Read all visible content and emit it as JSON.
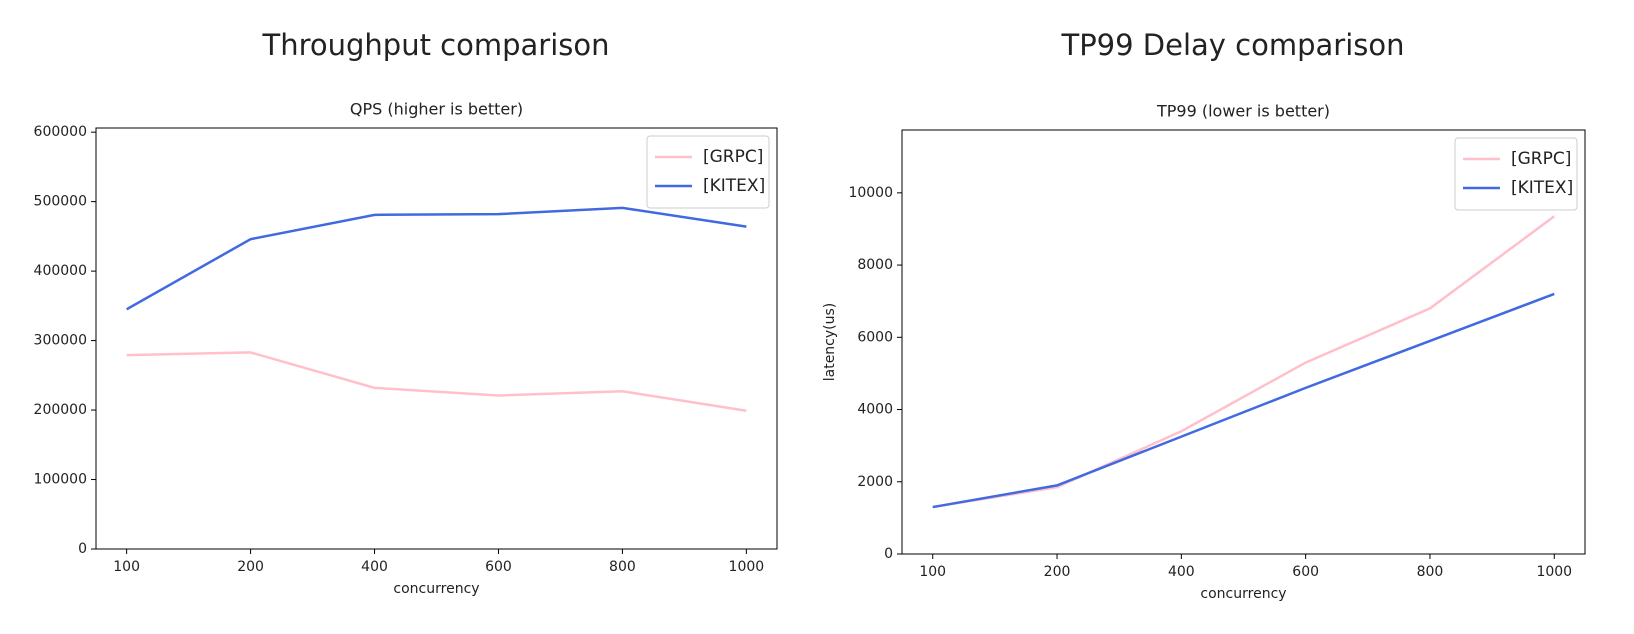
{
  "headings": [
    "Throughput comparison",
    "TP99 Delay comparison"
  ],
  "chart_data": [
    {
      "type": "line",
      "title": "QPS (higher is better)",
      "x_label": "concurrency",
      "categories": [
        "100",
        "200",
        "400",
        "600",
        "800",
        "1000"
      ],
      "series": [
        {
          "name": "[GRPC]",
          "color": "#ffc0cb",
          "values": [
            279000,
            283000,
            232000,
            221000,
            227000,
            199000
          ]
        },
        {
          "name": "[KITEX]",
          "color": "#4169e1",
          "values": [
            345000,
            446000,
            481000,
            482000,
            491000,
            464000
          ]
        }
      ],
      "ylim": [
        0,
        606000
      ],
      "yticks": [
        0,
        100000,
        200000,
        300000,
        400000,
        500000,
        600000
      ],
      "legend": "upper right"
    },
    {
      "type": "line",
      "title": "TP99 (lower is better)",
      "x_label": "concurrency",
      "y_label": "latency(us)",
      "categories": [
        "100",
        "200",
        "400",
        "600",
        "800",
        "1000"
      ],
      "series": [
        {
          "name": "[GRPC]",
          "color": "#ffc0cb",
          "values": [
            1300,
            1850,
            3400,
            5300,
            6800,
            9350
          ]
        },
        {
          "name": "[KITEX]",
          "color": "#4169e1",
          "values": [
            1300,
            1900,
            3250,
            4600,
            5900,
            7200
          ]
        }
      ],
      "ylim": [
        0,
        11740
      ],
      "yticks": [
        0,
        2000,
        4000,
        6000,
        8000,
        10000
      ],
      "legend": "upper right"
    }
  ]
}
